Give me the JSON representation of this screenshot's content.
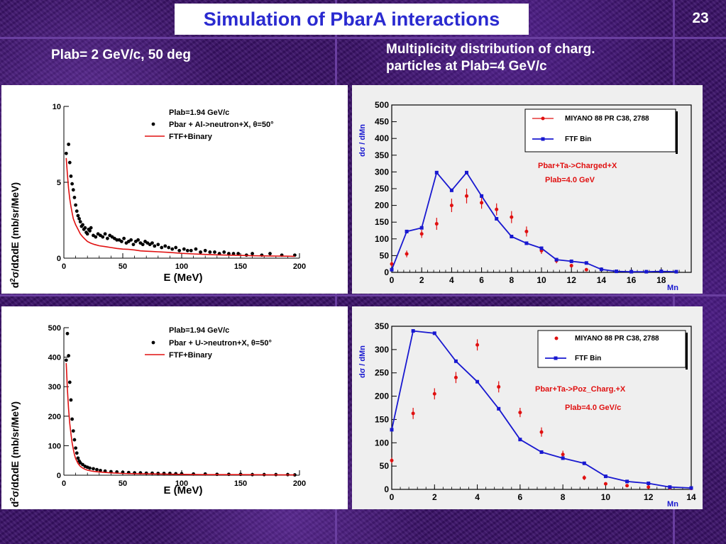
{
  "slide": {
    "title": "Simulation of PbarA interactions",
    "page_number": "23",
    "subtitle_left": "Plab= 2 GeV/c, 50 deg",
    "subtitle_right_line1": "Multiplicity distribution of charg.",
    "subtitle_right_line2": "particles at Plab=4 GeV/c"
  },
  "colors": {
    "title_text": "#2a2ad0",
    "background": "#3a1168",
    "data_red": "#e01010",
    "model_blue": "#1818d0"
  },
  "chart_data": [
    {
      "type": "scatter",
      "id": "al",
      "title": "",
      "legend_header": "Plab=1.94 GeV/c",
      "xlabel": "E (MeV)",
      "ylabel": "d2σ/dΩdE (mb/sr/MeV)",
      "xlim": [
        0,
        200
      ],
      "ylim": [
        0,
        10
      ],
      "xticks": [
        0,
        50,
        100,
        150,
        200
      ],
      "yticks": [
        0,
        5,
        10
      ],
      "legend_position": "top-right",
      "series": [
        {
          "name": "Pbar + Al->neutron+X, θ=50°",
          "style": "points",
          "color": "#000000",
          "x": [
            2,
            4,
            5,
            6,
            7,
            8,
            9,
            10,
            11,
            12,
            13,
            14,
            15,
            16,
            17,
            18,
            19,
            20,
            21,
            22,
            23,
            25,
            27,
            29,
            31,
            33,
            35,
            37,
            39,
            41,
            43,
            45,
            47,
            49,
            51,
            53,
            55,
            57,
            59,
            61,
            63,
            65,
            67,
            69,
            71,
            73,
            75,
            77,
            80,
            83,
            86,
            89,
            92,
            95,
            98,
            102,
            105,
            108,
            112,
            116,
            120,
            124,
            128,
            132,
            136,
            140,
            144,
            148,
            155,
            160,
            168,
            175,
            185,
            196
          ],
          "y": [
            6.9,
            7.5,
            6.3,
            5.4,
            4.9,
            4.5,
            4.0,
            3.5,
            3.1,
            2.8,
            2.6,
            2.4,
            2.1,
            2.2,
            1.9,
            2.0,
            1.7,
            1.6,
            1.9,
            1.8,
            2.0,
            1.5,
            1.4,
            1.6,
            1.5,
            1.4,
            1.6,
            1.3,
            1.5,
            1.4,
            1.3,
            1.2,
            1.2,
            1.1,
            1.3,
            1.0,
            1.1,
            1.2,
            0.9,
            1.1,
            1.2,
            1.0,
            0.9,
            1.1,
            1.0,
            0.9,
            1.0,
            0.8,
            0.9,
            0.7,
            0.8,
            0.7,
            0.6,
            0.7,
            0.5,
            0.6,
            0.5,
            0.5,
            0.6,
            0.4,
            0.5,
            0.4,
            0.4,
            0.3,
            0.4,
            0.3,
            0.3,
            0.3,
            0.2,
            0.3,
            0.2,
            0.3,
            0.2,
            0.2
          ]
        },
        {
          "name": "FTF+Binary",
          "style": "line",
          "color": "#e01010",
          "x": [
            2,
            3,
            4,
            5,
            6,
            7,
            8,
            10,
            12,
            14,
            16,
            18,
            20,
            23,
            26,
            30,
            35,
            40,
            45,
            50,
            55,
            60,
            65,
            70,
            75,
            80,
            90,
            100,
            110,
            120,
            130,
            140,
            150,
            160,
            170,
            180,
            190,
            196
          ],
          "y": [
            6.6,
            5.5,
            4.6,
            3.9,
            3.4,
            3.0,
            2.6,
            2.2,
            1.9,
            1.6,
            1.4,
            1.25,
            1.1,
            0.98,
            0.9,
            0.82,
            0.76,
            0.7,
            0.64,
            0.6,
            0.58,
            0.54,
            0.48,
            0.46,
            0.44,
            0.42,
            0.38,
            0.32,
            0.28,
            0.25,
            0.22,
            0.2,
            0.18,
            0.16,
            0.15,
            0.14,
            0.13,
            0.12
          ]
        }
      ]
    },
    {
      "type": "scatter",
      "id": "u",
      "title": "",
      "legend_header": "Plab=1.94 GeV/c",
      "xlabel": "E (MeV)",
      "ylabel": "d2σ/dΩdE (mb/sr/MeV)",
      "xlim": [
        0,
        200
      ],
      "ylim": [
        0,
        500
      ],
      "xticks": [
        0,
        50,
        100,
        150,
        200
      ],
      "yticks": [
        0,
        100,
        200,
        300,
        400,
        500
      ],
      "legend_position": "top-right",
      "series": [
        {
          "name": "Pbar + U->neutron+X, θ=50°",
          "style": "points",
          "color": "#000000",
          "x": [
            2,
            3,
            4,
            5,
            6,
            7,
            8,
            9,
            10,
            11,
            12,
            13,
            14,
            16,
            18,
            20,
            22,
            25,
            28,
            31,
            35,
            40,
            45,
            50,
            55,
            60,
            65,
            70,
            75,
            80,
            85,
            90,
            95,
            100,
            110,
            120,
            130,
            140,
            150,
            160,
            170,
            180,
            190,
            196
          ],
          "y": [
            390,
            480,
            405,
            315,
            255,
            190,
            150,
            120,
            92,
            75,
            58,
            48,
            42,
            36,
            30,
            27,
            24,
            22,
            19,
            16,
            14,
            12,
            11,
            10,
            9,
            8,
            8,
            7,
            7,
            6,
            6,
            6,
            5,
            5,
            4,
            4,
            3,
            3,
            3,
            2,
            2,
            2,
            2,
            1
          ]
        },
        {
          "name": "FTF+Binary",
          "style": "line",
          "color": "#e01010",
          "x": [
            2,
            3,
            4,
            5,
            6,
            7,
            8,
            9,
            10,
            12,
            14,
            16,
            18,
            20,
            25,
            30,
            40,
            50,
            60,
            80,
            100,
            120,
            150,
            196
          ],
          "y": [
            380,
            290,
            225,
            175,
            140,
            110,
            88,
            70,
            56,
            40,
            30,
            24,
            20,
            17,
            13,
            11,
            8,
            6,
            5,
            4,
            3,
            2,
            2,
            1
          ]
        }
      ]
    },
    {
      "type": "scatter",
      "id": "ta-charged",
      "title": "",
      "xlabel": "Mn",
      "ylabel": "dσ / dMn",
      "xlim": [
        0,
        20
      ],
      "ylim": [
        0,
        500
      ],
      "xticks": [
        0,
        2,
        4,
        6,
        8,
        10,
        12,
        14,
        16,
        18
      ],
      "yticks": [
        0,
        50,
        100,
        150,
        200,
        250,
        300,
        350,
        400,
        450,
        500
      ],
      "legend_position": "top-right",
      "annotations": [
        "Pbar+Ta->Charged+X",
        "Plab=4.0 GeV"
      ],
      "series": [
        {
          "name": "MIYANO 88 PR C38, 2788",
          "style": "errorbars",
          "color": "#e01010",
          "x": [
            0,
            1,
            2,
            3,
            4,
            5,
            6,
            7,
            8,
            9,
            10,
            11,
            12,
            13
          ],
          "y": [
            25,
            55,
            115,
            145,
            200,
            228,
            208,
            188,
            165,
            122,
            65,
            35,
            20,
            8
          ],
          "err": [
            8,
            10,
            12,
            18,
            20,
            22,
            18,
            18,
            18,
            15,
            10,
            8,
            5,
            3
          ]
        },
        {
          "name": "FTF Bin",
          "style": "line-markers",
          "color": "#1818d0",
          "x": [
            0,
            1,
            2,
            3,
            4,
            5,
            6,
            7,
            8,
            9,
            10,
            11,
            12,
            13,
            14,
            15,
            16,
            17,
            18,
            19
          ],
          "y": [
            8,
            122,
            133,
            298,
            245,
            298,
            228,
            160,
            107,
            87,
            72,
            38,
            33,
            28,
            9,
            3,
            2,
            2,
            3,
            2
          ]
        }
      ]
    },
    {
      "type": "scatter",
      "id": "ta-poz",
      "title": "",
      "xlabel": "Mn",
      "ylabel": "dσ / dMn",
      "xlim": [
        0,
        14
      ],
      "ylim": [
        0,
        350
      ],
      "xticks": [
        0,
        2,
        4,
        6,
        8,
        10,
        12,
        14
      ],
      "yticks": [
        0,
        50,
        100,
        150,
        200,
        250,
        300,
        350
      ],
      "legend_position": "top-right",
      "annotations": [
        "Pbar+Ta->Poz_Charg.+X",
        "Plab=4.0 GeV/c"
      ],
      "series": [
        {
          "name": "MIYANO 88 PR C38, 2788",
          "style": "errorbars",
          "color": "#e01010",
          "x": [
            0,
            1,
            2,
            3,
            4,
            5,
            6,
            7,
            8,
            9,
            10,
            11,
            12,
            13,
            14
          ],
          "y": [
            62,
            163,
            205,
            240,
            310,
            220,
            165,
            123,
            75,
            25,
            12,
            8,
            5,
            3,
            2
          ],
          "err": [
            6,
            12,
            12,
            12,
            12,
            12,
            10,
            10,
            8,
            5,
            3,
            2,
            2,
            1,
            1
          ]
        },
        {
          "name": "FTF Bin",
          "style": "line-markers",
          "color": "#1818d0",
          "x": [
            0,
            1,
            2,
            3,
            4,
            5,
            6,
            7,
            8,
            9,
            10,
            11,
            12,
            13,
            14
          ],
          "y": [
            128,
            340,
            335,
            275,
            231,
            173,
            107,
            80,
            67,
            56,
            28,
            17,
            13,
            5,
            3
          ]
        }
      ]
    }
  ]
}
